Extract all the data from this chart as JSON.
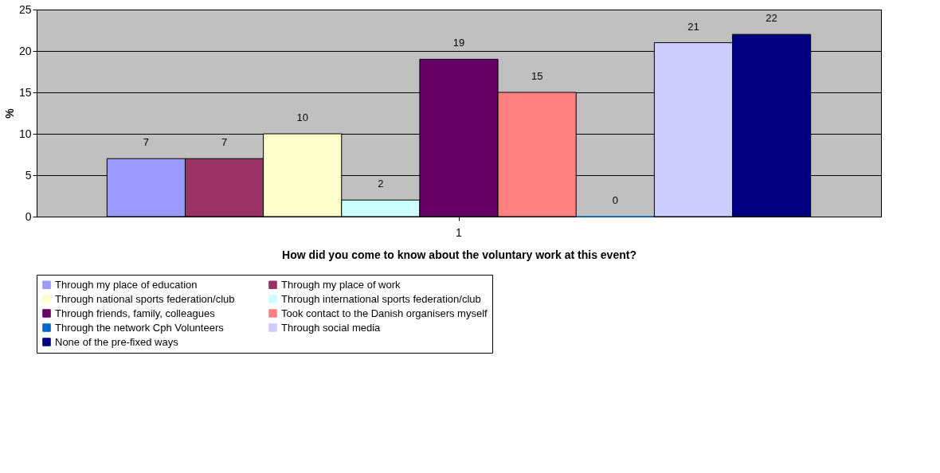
{
  "chart_data": {
    "type": "bar",
    "xlabel": "How did you come to know about the voluntary work at this event?",
    "ylabel": "%",
    "categories": [
      "1"
    ],
    "series": [
      {
        "name": "Through my place of education",
        "color": "#9999ff",
        "values": [
          7
        ]
      },
      {
        "name": "Through my place of work",
        "color": "#993366",
        "values": [
          7
        ]
      },
      {
        "name": "Through national sports federation/club",
        "color": "#ffffcc",
        "values": [
          10
        ]
      },
      {
        "name": "Through international sports federation/club",
        "color": "#ccffff",
        "values": [
          2
        ]
      },
      {
        "name": "Through friends, family, colleagues",
        "color": "#660066",
        "values": [
          19
        ]
      },
      {
        "name": "Took contact to the Danish organisers myself",
        "color": "#ff8080",
        "values": [
          15
        ]
      },
      {
        "name": "Through the network Cph Volunteers",
        "color": "#0066cc",
        "values": [
          0
        ]
      },
      {
        "name": "Through social media",
        "color": "#ccccff",
        "values": [
          21
        ]
      },
      {
        "name": "None of the pre-fixed ways",
        "color": "#000080",
        "values": [
          22
        ]
      }
    ],
    "ylim": [
      0,
      25
    ],
    "yticks": [
      0,
      5,
      10,
      15,
      20,
      25
    ],
    "grid": "y",
    "legend": "bottom",
    "data_labels": true
  }
}
